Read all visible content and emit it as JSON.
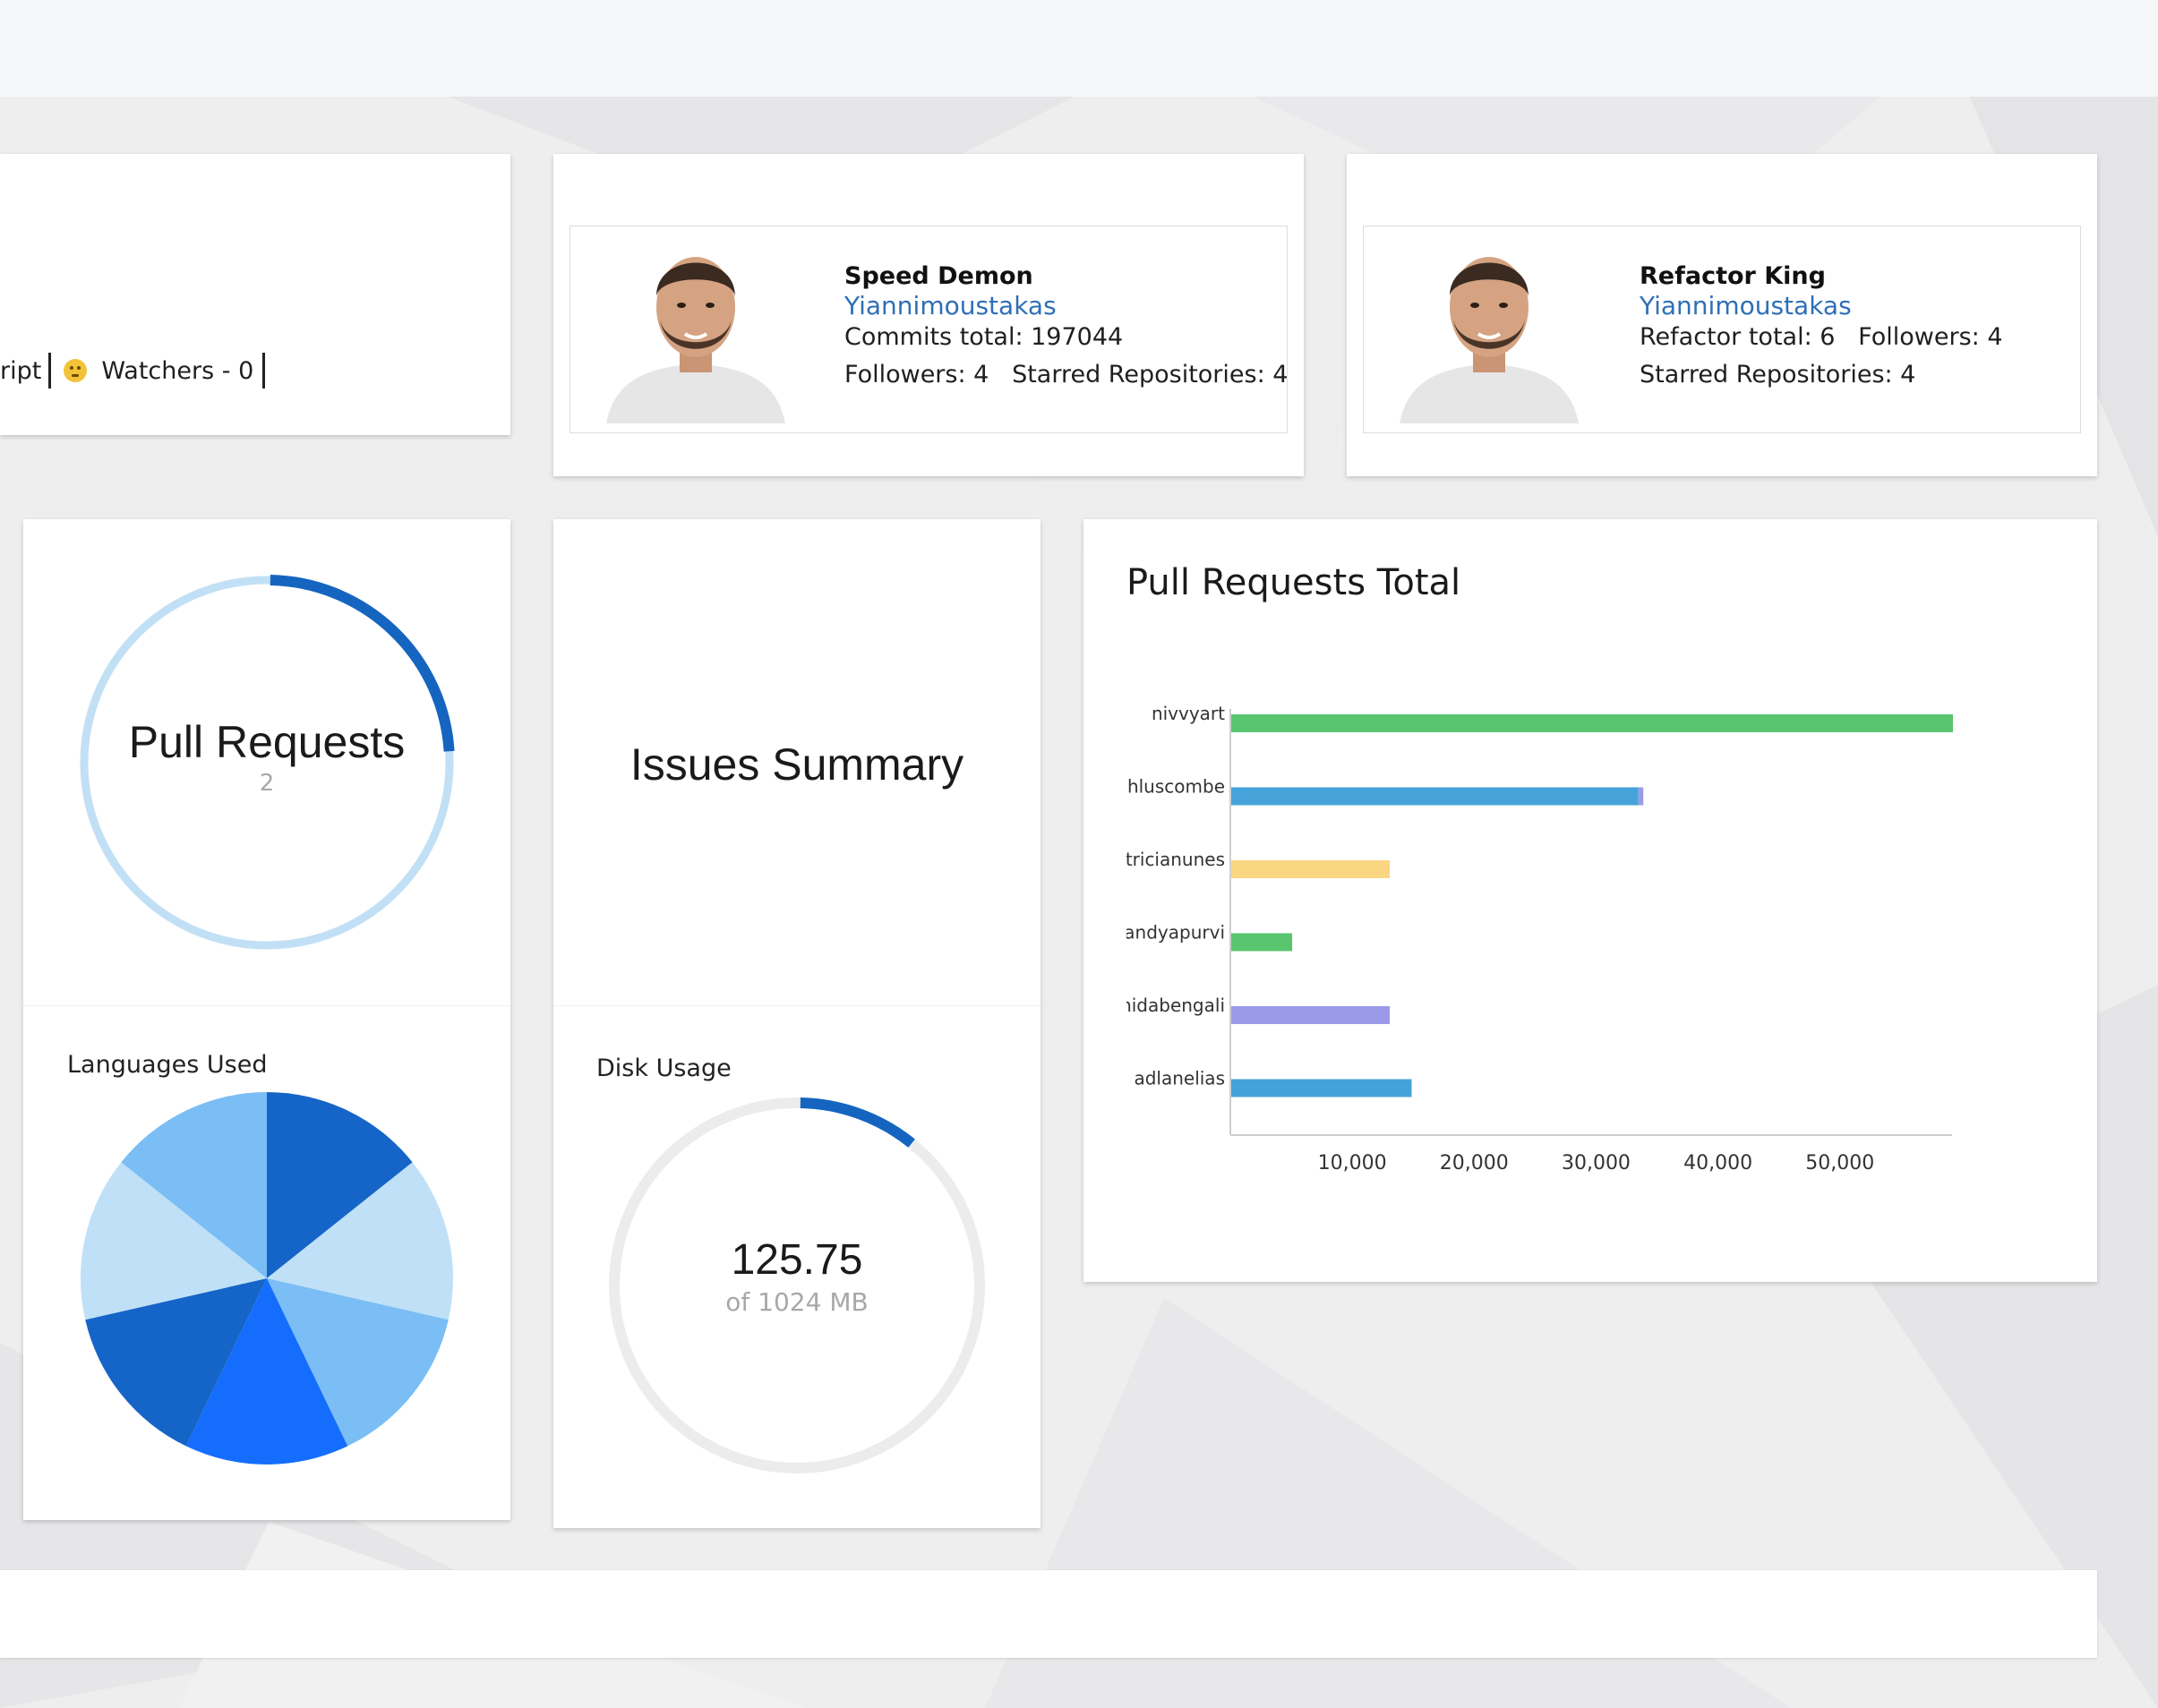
{
  "stats": {
    "language_fragment": "ript",
    "watchers_text": "Watchers - 0"
  },
  "awards": [
    {
      "title": "Speed Demon",
      "username": "Yiannimoustakas",
      "line1": "Commits total: 197044",
      "line2": "Followers: 4   Starred Repositories: 4"
    },
    {
      "title": "Refactor King",
      "username": "Yiannimoustakas",
      "line1": "Refactor total: 6   Followers: 4",
      "line2": "Starred Repositories: 4"
    }
  ],
  "pull_requests_gauge": {
    "title": "Pull Requests",
    "value": "2",
    "fill_fraction": 0.24,
    "colors": {
      "fill": "#1565c0",
      "track": "#c2e0f5"
    }
  },
  "issues": {
    "title": "Issues Summary"
  },
  "languages": {
    "label": "Languages Used",
    "slices": [
      {
        "value": 1,
        "color": "#1565c8"
      },
      {
        "value": 1,
        "color": "#bfe0f6"
      },
      {
        "value": 1,
        "color": "#7bbdf5"
      },
      {
        "value": 1,
        "color": "#146dfc"
      },
      {
        "value": 1,
        "color": "#1565c8"
      },
      {
        "value": 1,
        "color": "#bfe0f6"
      },
      {
        "value": 1,
        "color": "#7bbdf5"
      }
    ]
  },
  "disk": {
    "label": "Disk Usage",
    "value": "125.75",
    "caption": "of 1024 MB",
    "used": 125.75,
    "total": 1024,
    "colors": {
      "fill": "#1565c0",
      "track": "#ececec"
    }
  },
  "chart_data": {
    "type": "bar",
    "orientation": "horizontal",
    "title": "Pull Requests Total",
    "categories": [
      "nivvyart",
      "hluscombe",
      "atricianunes",
      "pandyapurvi",
      "shidabengali",
      "adlanelias"
    ],
    "series": [
      {
        "values": [
          59200,
          33400,
          13000,
          5000,
          13000,
          14800
        ]
      }
    ],
    "stacked_extra": [
      0,
      400,
      0,
      0,
      0,
      0
    ],
    "bar_colors": [
      "#5ac56f",
      "#45a3d9",
      "#fbd682",
      "#5ac56f",
      "#9b9ae9",
      "#45a3d9"
    ],
    "extra_color": "#9b9ae9",
    "xticks": [
      10000,
      20000,
      30000,
      40000,
      50000
    ],
    "xtick_labels": [
      "10,000",
      "20,000",
      "30,000",
      "40,000",
      "50,000"
    ],
    "xlim": [
      0,
      59200
    ],
    "xlabel": "",
    "ylabel": "",
    "grid": false
  }
}
